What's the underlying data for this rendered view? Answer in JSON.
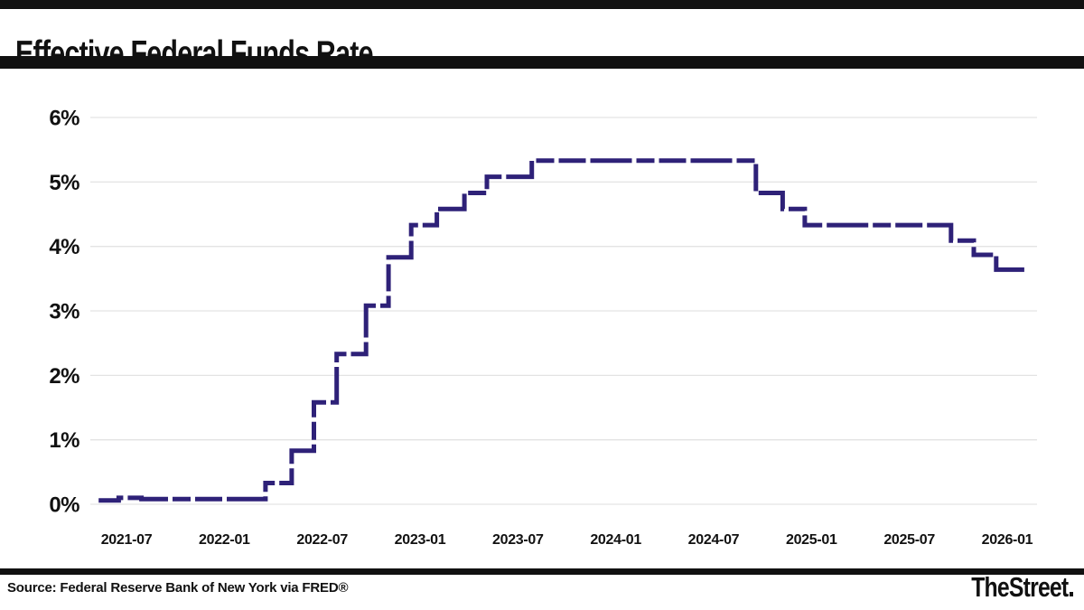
{
  "header": {
    "title": "Effective Federal Funds Rate"
  },
  "footer": {
    "source": "Source: Federal Reserve Bank of New York via FRED®",
    "brand": "TheStreet"
  },
  "colors": {
    "line": "#2e2178",
    "grid": "#e3e3e3",
    "text": "#111111",
    "rule_bars": "#111111"
  },
  "chart_data": {
    "type": "line",
    "subtype": "step",
    "title": "Effective Federal Funds Rate",
    "unit": "%",
    "grid": "horizontal",
    "legend": "none",
    "ylim": [
      0,
      6
    ],
    "y_ticks": [
      {
        "label": "0%",
        "value": 0
      },
      {
        "label": "1%",
        "value": 1
      },
      {
        "label": "2%",
        "value": 2
      },
      {
        "label": "3%",
        "value": 3
      },
      {
        "label": "4%",
        "value": 4
      },
      {
        "label": "5%",
        "value": 5
      },
      {
        "label": "6%",
        "value": 6
      }
    ],
    "x_ticks": [
      {
        "label": "2021-07",
        "date": "2021-07-01"
      },
      {
        "label": "2022-01",
        "date": "2022-01-01"
      },
      {
        "label": "2022-07",
        "date": "2022-07-01"
      },
      {
        "label": "2023-01",
        "date": "2023-01-01"
      },
      {
        "label": "2023-07",
        "date": "2023-07-01"
      },
      {
        "label": "2024-01",
        "date": "2024-01-01"
      },
      {
        "label": "2024-07",
        "date": "2024-07-01"
      },
      {
        "label": "2025-01",
        "date": "2025-01-01"
      },
      {
        "label": "2025-07",
        "date": "2025-07-01"
      },
      {
        "label": "2026-01",
        "date": "2026-01-01"
      }
    ],
    "line_style": "dashed",
    "line_color": "#2e2178",
    "line_width": 5,
    "series": [
      {
        "name": "Effective Federal Funds Rate",
        "end_date": "2026-02-10",
        "points": [
          {
            "date": "2021-05-10",
            "value": 0.06
          },
          {
            "date": "2021-06-17",
            "value": 0.1
          },
          {
            "date": "2021-07-29",
            "value": 0.08
          },
          {
            "date": "2022-03-17",
            "value": 0.33
          },
          {
            "date": "2022-05-05",
            "value": 0.83
          },
          {
            "date": "2022-06-16",
            "value": 1.58
          },
          {
            "date": "2022-07-28",
            "value": 2.33
          },
          {
            "date": "2022-09-22",
            "value": 3.08
          },
          {
            "date": "2022-11-03",
            "value": 3.83
          },
          {
            "date": "2022-12-15",
            "value": 4.33
          },
          {
            "date": "2023-02-02",
            "value": 4.58
          },
          {
            "date": "2023-03-23",
            "value": 4.83
          },
          {
            "date": "2023-05-04",
            "value": 5.08
          },
          {
            "date": "2023-07-27",
            "value": 5.33
          },
          {
            "date": "2024-09-19",
            "value": 4.83
          },
          {
            "date": "2024-11-08",
            "value": 4.58
          },
          {
            "date": "2024-12-19",
            "value": 4.33
          },
          {
            "date": "2025-09-18",
            "value": 4.09
          },
          {
            "date": "2025-10-30",
            "value": 3.87
          },
          {
            "date": "2025-12-11",
            "value": 3.64
          }
        ]
      }
    ]
  }
}
